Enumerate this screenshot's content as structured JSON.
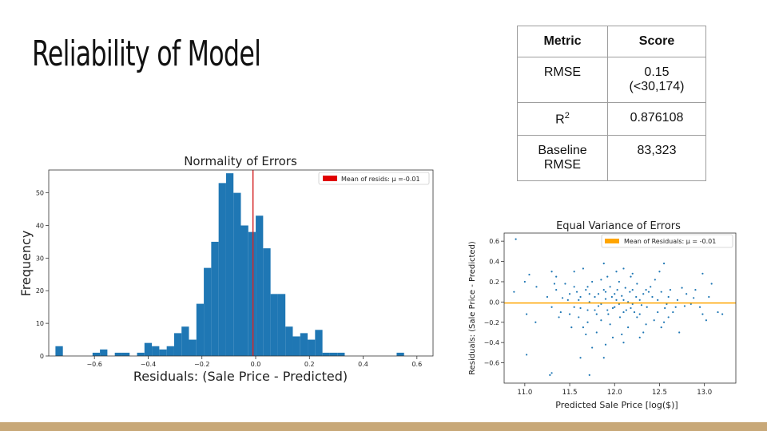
{
  "title": "Reliability of Model",
  "table": {
    "headers": [
      "Metric",
      "Score"
    ],
    "rows": [
      {
        "metric": "RMSE",
        "score_l1": "0.15",
        "score_l2": "(<30,174)"
      },
      {
        "metric_base": "R",
        "metric_sup": "2",
        "score": "0.876108"
      },
      {
        "metric_l1": "Baseline",
        "metric_l2": "RMSE",
        "score": "83,323"
      }
    ]
  },
  "colors": {
    "bars": "#1f77b4",
    "mean_line_hist": "#d62728",
    "scatter": "#1f77b4",
    "mean_line_scatter": "#ffa500",
    "footer": "#c8a878"
  },
  "chart_data": [
    {
      "type": "bar",
      "title": "Normality of Errors",
      "xlabel": "Residuals: (Sale Price - Predicted)",
      "ylabel": "Frequency",
      "xlim": [
        -0.77,
        0.66
      ],
      "ylim": [
        0,
        57
      ],
      "xticks": [
        -0.6,
        -0.4,
        -0.2,
        0.0,
        0.2,
        0.4,
        0.6
      ],
      "xtick_labels": [
        "−0.6",
        "−0.4",
        "−0.2",
        "0.0",
        "0.2",
        "0.4",
        "0.6"
      ],
      "yticks": [
        0,
        10,
        20,
        30,
        40,
        50
      ],
      "ytick_labels": [
        "0",
        "10",
        "20",
        "30",
        "40",
        "50"
      ],
      "bin_start": -0.745,
      "bin_width": 0.0276,
      "counts": [
        3,
        0,
        0,
        0,
        0,
        1,
        2,
        0,
        1,
        1,
        0,
        1,
        4,
        3,
        2,
        3,
        7,
        9,
        5,
        16,
        27,
        35,
        53,
        56,
        50,
        40,
        38,
        43,
        33,
        19,
        19,
        9,
        6,
        7,
        5,
        8,
        1,
        1,
        1,
        0,
        0,
        0,
        0,
        0,
        0,
        0,
        1
      ],
      "mean": -0.01,
      "legend": "Mean of resids: μ =-0.01",
      "legend_position": "top-right",
      "grid": false
    },
    {
      "type": "scatter",
      "title": "Equal Variance of Errors",
      "xlabel": "Predicted Sale Price [log($)]",
      "ylabel": "Residuals: (Sale Price - Predicted)",
      "xlim": [
        10.77,
        13.35
      ],
      "ylim": [
        -0.8,
        0.68
      ],
      "xticks": [
        11.0,
        11.5,
        12.0,
        12.5,
        13.0
      ],
      "xtick_labels": [
        "11.0",
        "11.5",
        "12.0",
        "12.5",
        "13.0"
      ],
      "yticks": [
        0.6,
        0.4,
        0.2,
        0.0,
        -0.2,
        -0.4,
        -0.6
      ],
      "ytick_labels": [
        "0.6",
        "0.4",
        "0.2",
        "0.0",
        "−0.2",
        "−0.4",
        "−0.6"
      ],
      "mean": -0.01,
      "legend": "Mean of Residuals:  μ = -0.01",
      "legend_position": "top-right",
      "grid": false,
      "points": [
        [
          10.9,
          0.62
        ],
        [
          11.28,
          -0.72
        ],
        [
          11.3,
          -0.7
        ],
        [
          11.72,
          -0.72
        ],
        [
          11.62,
          -0.55
        ],
        [
          11.02,
          -0.52
        ],
        [
          11.05,
          0.27
        ],
        [
          11.0,
          0.2
        ],
        [
          10.88,
          0.1
        ],
        [
          11.13,
          0.15
        ],
        [
          11.02,
          -0.12
        ],
        [
          11.12,
          -0.2
        ],
        [
          11.3,
          0.3
        ],
        [
          11.35,
          0.25
        ],
        [
          11.55,
          0.3
        ],
        [
          11.65,
          0.33
        ],
        [
          11.88,
          0.38
        ],
        [
          12.02,
          0.3
        ],
        [
          12.1,
          0.33
        ],
        [
          12.2,
          0.28
        ],
        [
          12.55,
          0.38
        ],
        [
          12.5,
          0.3
        ],
        [
          12.98,
          0.28
        ],
        [
          13.08,
          0.18
        ],
        [
          12.75,
          0.14
        ],
        [
          12.9,
          0.12
        ],
        [
          13.05,
          0.05
        ],
        [
          12.85,
          -0.02
        ],
        [
          12.98,
          -0.12
        ],
        [
          13.02,
          -0.18
        ],
        [
          13.15,
          -0.1
        ],
        [
          13.2,
          -0.12
        ],
        [
          12.6,
          -0.15
        ],
        [
          12.72,
          -0.3
        ],
        [
          12.52,
          -0.25
        ],
        [
          12.28,
          -0.35
        ],
        [
          12.1,
          -0.4
        ],
        [
          11.9,
          -0.42
        ],
        [
          11.88,
          -0.55
        ],
        [
          11.75,
          -0.45
        ],
        [
          11.98,
          -0.35
        ],
        [
          11.8,
          -0.3
        ],
        [
          11.7,
          -0.2
        ],
        [
          11.6,
          -0.15
        ],
        [
          11.4,
          -0.1
        ],
        [
          11.3,
          -0.05
        ],
        [
          11.25,
          0.05
        ],
        [
          11.35,
          0.12
        ],
        [
          11.45,
          0.18
        ],
        [
          11.5,
          0.08
        ],
        [
          11.55,
          -0.05
        ],
        [
          11.62,
          0.05
        ],
        [
          11.68,
          0.12
        ],
        [
          11.72,
          0.0
        ],
        [
          11.78,
          -0.08
        ],
        [
          11.82,
          0.08
        ],
        [
          11.85,
          -0.02
        ],
        [
          11.9,
          0.1
        ],
        [
          11.93,
          -0.12
        ],
        [
          11.97,
          0.05
        ],
        [
          12.0,
          -0.05
        ],
        [
          12.03,
          0.12
        ],
        [
          12.06,
          -0.15
        ],
        [
          12.1,
          0.02
        ],
        [
          12.13,
          -0.08
        ],
        [
          12.17,
          0.1
        ],
        [
          12.2,
          -0.02
        ],
        [
          12.24,
          0.05
        ],
        [
          12.28,
          -0.12
        ],
        [
          12.32,
          0.08
        ],
        [
          12.36,
          -0.05
        ],
        [
          12.4,
          0.15
        ],
        [
          12.44,
          -0.18
        ],
        [
          12.48,
          0.02
        ],
        [
          12.52,
          0.1
        ],
        [
          12.56,
          -0.06
        ],
        [
          12.6,
          0.05
        ],
        [
          12.65,
          -0.1
        ],
        [
          12.7,
          0.02
        ],
        [
          12.8,
          0.08
        ],
        [
          11.65,
          -0.25
        ],
        [
          11.75,
          0.2
        ],
        [
          11.85,
          0.22
        ],
        [
          11.95,
          -0.22
        ],
        [
          12.05,
          0.2
        ],
        [
          12.15,
          -0.25
        ],
        [
          12.25,
          0.18
        ],
        [
          12.35,
          -0.22
        ],
        [
          12.45,
          0.22
        ],
        [
          11.7,
          0.15
        ],
        [
          11.8,
          -0.12
        ],
        [
          11.9,
          0.03
        ],
        [
          12.0,
          0.08
        ],
        [
          12.1,
          -0.1
        ],
        [
          12.2,
          0.12
        ],
        [
          12.3,
          -0.03
        ],
        [
          11.6,
          0.02
        ],
        [
          11.7,
          -0.08
        ],
        [
          12.15,
          0.0
        ],
        [
          12.05,
          -0.02
        ],
        [
          11.95,
          0.15
        ],
        [
          11.85,
          -0.18
        ],
        [
          12.25,
          -0.15
        ],
        [
          12.35,
          0.12
        ],
        [
          11.55,
          0.15
        ],
        [
          11.5,
          -0.12
        ],
        [
          12.42,
          0.05
        ],
        [
          12.58,
          -0.02
        ],
        [
          11.48,
          0.02
        ],
        [
          11.78,
          0.05
        ],
        [
          11.88,
          0.12
        ],
        [
          12.08,
          0.06
        ],
        [
          12.18,
          -0.06
        ],
        [
          12.28,
          0.02
        ],
        [
          11.98,
          -0.06
        ],
        [
          11.72,
          0.08
        ],
        [
          11.82,
          -0.04
        ],
        [
          12.12,
          0.14
        ],
        [
          12.22,
          -0.1
        ],
        [
          12.02,
          0.02
        ],
        [
          11.92,
          -0.08
        ],
        [
          11.62,
          -0.06
        ],
        [
          11.58,
          0.1
        ],
        [
          12.48,
          -0.1
        ],
        [
          12.38,
          0.1
        ],
        [
          12.62,
          0.12
        ],
        [
          11.42,
          0.04
        ],
        [
          12.68,
          -0.05
        ],
        [
          12.78,
          -0.04
        ],
        [
          11.38,
          -0.15
        ],
        [
          12.88,
          0.04
        ],
        [
          11.68,
          -0.32
        ],
        [
          12.08,
          -0.32
        ],
        [
          12.32,
          -0.3
        ],
        [
          12.18,
          0.25
        ],
        [
          11.92,
          0.25
        ],
        [
          11.52,
          -0.25
        ],
        [
          12.55,
          -0.2
        ],
        [
          12.95,
          -0.05
        ],
        [
          11.33,
          0.18
        ]
      ]
    }
  ]
}
